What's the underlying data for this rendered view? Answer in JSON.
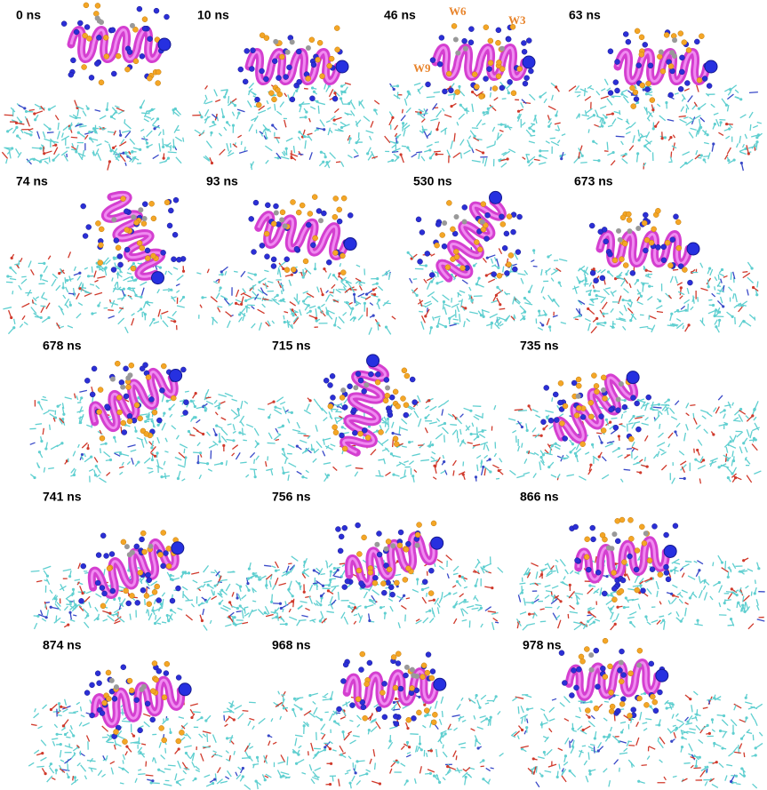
{
  "panels": [
    {
      "label": "0 ns"
    },
    {
      "label": "10 ns"
    },
    {
      "label": "46 ns"
    },
    {
      "label": "63 ns"
    },
    {
      "label": "74 ns"
    },
    {
      "label": "93 ns"
    },
    {
      "label": "530 ns"
    },
    {
      "label": "673 ns"
    },
    {
      "label": "678 ns"
    },
    {
      "label": "715 ns"
    },
    {
      "label": "735 ns"
    },
    {
      "label": "741 ns"
    },
    {
      "label": "756 ns"
    },
    {
      "label": "866 ns"
    },
    {
      "label": "874 ns"
    },
    {
      "label": "968 ns"
    },
    {
      "label": "978 ns"
    }
  ],
  "annotations": [
    {
      "label": "W6"
    },
    {
      "label": "W3"
    },
    {
      "label": "W9"
    }
  ]
}
